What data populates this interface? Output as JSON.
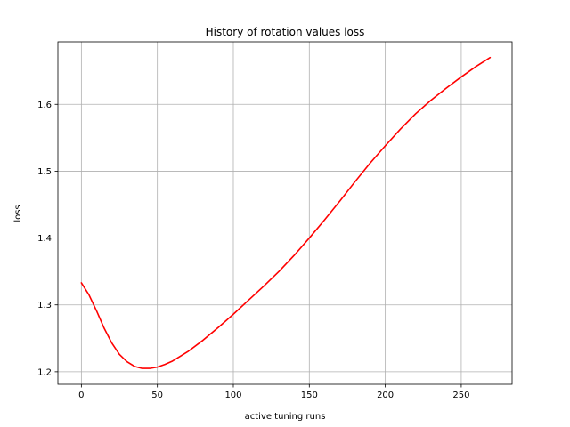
{
  "chart_data": {
    "type": "line",
    "title": "History of rotation values loss",
    "xlabel": "active tuning runs",
    "ylabel": "loss",
    "xlim": [
      -15.45,
      283.45
    ],
    "ylim": [
      1.1812,
      1.6935
    ],
    "xticks": [
      0,
      50,
      100,
      150,
      200,
      250
    ],
    "yticks": [
      1.2,
      1.3,
      1.4,
      1.5,
      1.6
    ],
    "xtick_labels": [
      "0",
      "50",
      "100",
      "150",
      "200",
      "250"
    ],
    "ytick_labels": [
      "1.2",
      "1.3",
      "1.4",
      "1.5",
      "1.6"
    ],
    "grid": true,
    "series": [
      {
        "color": "#ff0000",
        "x": [
          0,
          5,
          10,
          15,
          20,
          25,
          30,
          35,
          40,
          45,
          50,
          55,
          60,
          70,
          80,
          90,
          100,
          110,
          120,
          130,
          140,
          150,
          160,
          170,
          180,
          190,
          200,
          210,
          220,
          230,
          240,
          250,
          260,
          269
        ],
        "y": [
          1.333,
          1.315,
          1.291,
          1.265,
          1.243,
          1.226,
          1.215,
          1.208,
          1.205,
          1.205,
          1.207,
          1.211,
          1.216,
          1.23,
          1.247,
          1.266,
          1.286,
          1.307,
          1.328,
          1.35,
          1.374,
          1.4,
          1.427,
          1.455,
          1.484,
          1.512,
          1.538,
          1.563,
          1.586,
          1.606,
          1.624,
          1.641,
          1.657,
          1.67
        ]
      }
    ]
  }
}
